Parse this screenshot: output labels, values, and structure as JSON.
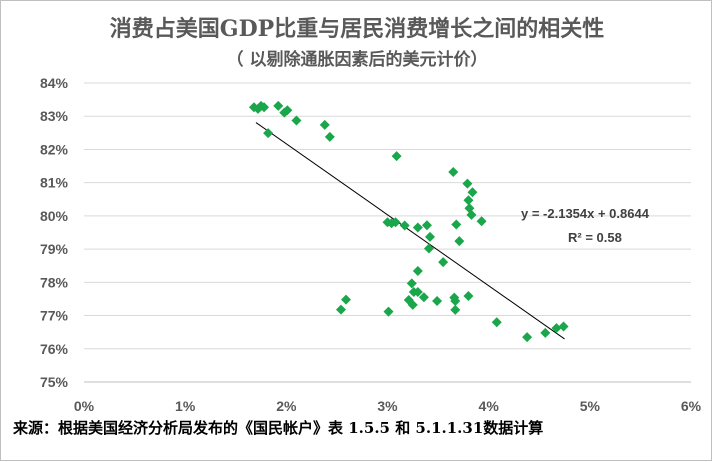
{
  "chart_data": {
    "type": "scatter",
    "title": "消费占美国GDP比重与居民消费增长之间的相关性",
    "subtitle": "（ 以剔除通胀因素后的美元计价）",
    "xlim": [
      0,
      0.06
    ],
    "ylim": [
      0.75,
      0.84
    ],
    "x_ticks": [
      "0%",
      "1%",
      "2%",
      "3%",
      "4%",
      "5%",
      "6%"
    ],
    "y_ticks": [
      "84%",
      "83%",
      "82%",
      "81%",
      "80%",
      "79%",
      "78%",
      "77%",
      "76%",
      "75%"
    ],
    "marker_color": "#1aa64a",
    "trendline": {
      "slope": -2.1354,
      "intercept": 0.8644,
      "x_range": [
        0.017,
        0.0475
      ]
    },
    "equation_label": "y = -2.1354x + 0.8644",
    "r2_label": "R² = 0.58",
    "points": [
      [
        0.0168,
        0.8327
      ],
      [
        0.0172,
        0.8322
      ],
      [
        0.0175,
        0.8331
      ],
      [
        0.0178,
        0.8327
      ],
      [
        0.0182,
        0.8249
      ],
      [
        0.0192,
        0.8331
      ],
      [
        0.0198,
        0.8311
      ],
      [
        0.0201,
        0.8318
      ],
      [
        0.021,
        0.8287
      ],
      [
        0.0238,
        0.8274
      ],
      [
        0.0243,
        0.8238
      ],
      [
        0.0309,
        0.818
      ],
      [
        0.0365,
        0.8132
      ],
      [
        0.0379,
        0.8097
      ],
      [
        0.038,
        0.8047
      ],
      [
        0.0381,
        0.8023
      ],
      [
        0.0383,
        0.8003
      ],
      [
        0.0384,
        0.8071
      ],
      [
        0.0393,
        0.7984
      ],
      [
        0.03,
        0.7981
      ],
      [
        0.0304,
        0.7978
      ],
      [
        0.0308,
        0.7981
      ],
      [
        0.0317,
        0.7971
      ],
      [
        0.033,
        0.7965
      ],
      [
        0.0339,
        0.7972
      ],
      [
        0.0368,
        0.7974
      ],
      [
        0.0371,
        0.7924
      ],
      [
        0.0342,
        0.7937
      ],
      [
        0.0341,
        0.7902
      ],
      [
        0.0355,
        0.7861
      ],
      [
        0.033,
        0.7834
      ],
      [
        0.0324,
        0.7797
      ],
      [
        0.0326,
        0.7771
      ],
      [
        0.033,
        0.7771
      ],
      [
        0.0321,
        0.7747
      ],
      [
        0.0325,
        0.7732
      ],
      [
        0.0336,
        0.7755
      ],
      [
        0.0349,
        0.7744
      ],
      [
        0.0366,
        0.7754
      ],
      [
        0.0367,
        0.7744
      ],
      [
        0.038,
        0.7759
      ],
      [
        0.0367,
        0.7717
      ],
      [
        0.0254,
        0.7718
      ],
      [
        0.0259,
        0.7748
      ],
      [
        0.0301,
        0.7712
      ],
      [
        0.0408,
        0.768
      ],
      [
        0.0438,
        0.7635
      ],
      [
        0.0456,
        0.7648
      ],
      [
        0.0467,
        0.7662
      ],
      [
        0.0474,
        0.7667
      ]
    ]
  },
  "source_note": "来源：根据美国经济分析局发布的《国民帐户》表 1.5.5 和 5.1.1.31数据计算"
}
